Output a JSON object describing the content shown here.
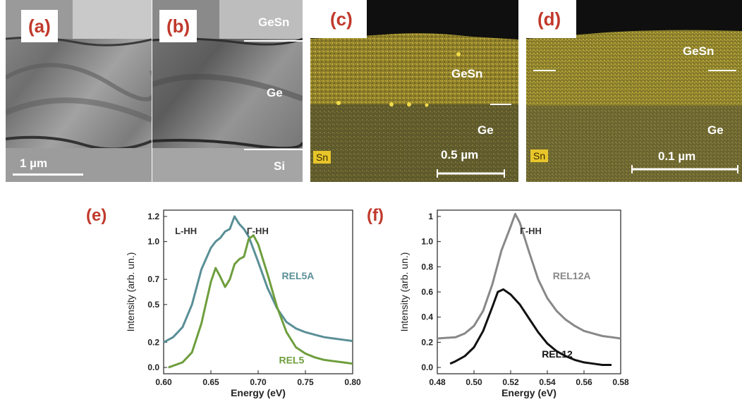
{
  "panels": {
    "a": {
      "label": "(a)",
      "scale_bar": "1 µm"
    },
    "b": {
      "label": "(b)",
      "layer_labels": [
        "GeSn",
        "Ge",
        "Si"
      ]
    },
    "c": {
      "label": "(c)",
      "element": "Sn",
      "layer_labels": [
        "GeSn",
        "Ge"
      ],
      "scale_bar": "0.5 µm"
    },
    "d": {
      "label": "(d)",
      "element": "Sn",
      "layer_labels": [
        "GeSn",
        "Ge"
      ],
      "scale_bar": "0.1 µm"
    },
    "e": {
      "label": "(e)"
    },
    "f": {
      "label": "(f)"
    }
  },
  "colors": {
    "panel_label": "#c0392b",
    "eds_yellow": "#c8b331",
    "teal": "#5a8f96",
    "green": "#6e9e3d",
    "gray": "#888888",
    "black": "#111111"
  },
  "chart_data": [
    {
      "type": "line",
      "xlabel": "Energy (eV)",
      "ylabel": "Intensity (arb. un.)",
      "xlim": [
        0.6,
        0.8
      ],
      "ylim": [
        -0.05,
        1.25
      ],
      "xticks": [
        "0.60",
        "0.65",
        "0.70",
        "0.75",
        "0.80"
      ],
      "yticks": [
        "0.0",
        "0.2",
        "0.5",
        "0.7",
        "1.0",
        "1.2"
      ],
      "annotations": [
        "L-HH",
        "Γ-HH"
      ],
      "series": [
        {
          "name": "REL5A",
          "color": "#5a8f96",
          "x": [
            0.6,
            0.61,
            0.62,
            0.63,
            0.64,
            0.65,
            0.655,
            0.66,
            0.665,
            0.67,
            0.675,
            0.68,
            0.685,
            0.69,
            0.7,
            0.71,
            0.72,
            0.73,
            0.74,
            0.75,
            0.76,
            0.77,
            0.78,
            0.79,
            0.8
          ],
          "y": [
            0.2,
            0.24,
            0.32,
            0.5,
            0.78,
            0.95,
            1.0,
            1.03,
            1.08,
            1.1,
            1.2,
            1.14,
            1.1,
            1.04,
            0.84,
            0.63,
            0.47,
            0.36,
            0.31,
            0.28,
            0.26,
            0.24,
            0.23,
            0.22,
            0.21
          ]
        },
        {
          "name": "REL5",
          "color": "#6e9e3d",
          "x": [
            0.605,
            0.62,
            0.63,
            0.64,
            0.65,
            0.655,
            0.66,
            0.665,
            0.67,
            0.675,
            0.68,
            0.685,
            0.69,
            0.695,
            0.7,
            0.71,
            0.72,
            0.73,
            0.74,
            0.75,
            0.76,
            0.77,
            0.78,
            0.79,
            0.8
          ],
          "y": [
            0.0,
            0.04,
            0.12,
            0.35,
            0.68,
            0.79,
            0.72,
            0.64,
            0.7,
            0.82,
            0.86,
            0.88,
            1.02,
            1.05,
            0.98,
            0.74,
            0.48,
            0.28,
            0.16,
            0.11,
            0.08,
            0.06,
            0.05,
            0.04,
            0.03
          ]
        }
      ]
    },
    {
      "type": "line",
      "xlabel": "Energy (eV)",
      "ylabel": "Intensity (arb. un.)",
      "xlim": [
        0.48,
        0.58
      ],
      "ylim": [
        -0.05,
        1.25
      ],
      "xticks": [
        "0.48",
        "0.50",
        "0.52",
        "0.54",
        "0.56",
        "0.58"
      ],
      "yticks": [
        "0.0",
        "0.2",
        "0.4",
        "0.6",
        "0.8",
        "1.0",
        "1"
      ],
      "annotations": [
        "Γ-HH"
      ],
      "series": [
        {
          "name": "REL12A",
          "color": "#888888",
          "x": [
            0.48,
            0.49,
            0.495,
            0.5,
            0.505,
            0.51,
            0.515,
            0.52,
            0.5225,
            0.525,
            0.53,
            0.535,
            0.54,
            0.545,
            0.55,
            0.555,
            0.56,
            0.565,
            0.57,
            0.575,
            0.58
          ],
          "y": [
            0.23,
            0.24,
            0.27,
            0.33,
            0.45,
            0.66,
            0.93,
            1.12,
            1.22,
            1.15,
            0.92,
            0.7,
            0.55,
            0.45,
            0.38,
            0.33,
            0.29,
            0.27,
            0.25,
            0.24,
            0.23
          ]
        },
        {
          "name": "REL12",
          "color": "#111111",
          "x": [
            0.487,
            0.49,
            0.495,
            0.5,
            0.505,
            0.51,
            0.513,
            0.516,
            0.52,
            0.525,
            0.53,
            0.535,
            0.54,
            0.545,
            0.55,
            0.555,
            0.56,
            0.565,
            0.57,
            0.575
          ],
          "y": [
            0.03,
            0.05,
            0.09,
            0.16,
            0.29,
            0.48,
            0.6,
            0.62,
            0.58,
            0.5,
            0.39,
            0.28,
            0.19,
            0.13,
            0.09,
            0.06,
            0.04,
            0.03,
            0.02,
            0.02
          ]
        }
      ]
    }
  ]
}
